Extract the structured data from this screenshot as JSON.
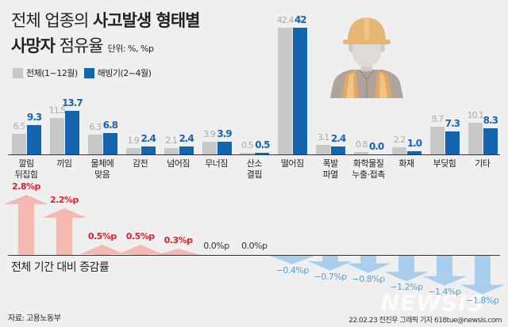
{
  "title": {
    "line1_normal": "전체 업종의 ",
    "line1_bold": "사고발생 형태별",
    "line2_bold": "사망자",
    "line2_normal": " 점유율",
    "unit": "단위: %, %p"
  },
  "legend": [
    {
      "label": "전체(1~12월)",
      "color": "#c8c8c8"
    },
    {
      "label": "해빙기(2~4월)",
      "color": "#1565ad"
    }
  ],
  "change_title": "전체 기간 대비 증감률",
  "source": "자료: 고용노동부",
  "credit": "22.02.23 전진우 그래픽 기자 618tue@newsis.com",
  "watermark": "NEWSIS",
  "colors": {
    "gray": "#c8c8c8",
    "blue": "#1565ad",
    "up_arrow": "#f5b8b0",
    "up_text": "#d8232a",
    "down_arrow": "#a9cdec",
    "down_text": "#4fa3d9"
  },
  "chart_data": {
    "type": "bar",
    "title": "전체 업종의 사고발생 형태별 사망자 점유율",
    "unit": "%, %p",
    "categories": [
      "깔림 뒤집힘",
      "끼임",
      "물체에 맞음",
      "감전",
      "넘어짐",
      "무너짐",
      "산소 결핍",
      "떨어짐",
      "폭발 파열",
      "화학물질 누출·접촉",
      "화재",
      "부딪힘",
      "기타"
    ],
    "category_lines": [
      [
        "깔림",
        "뒤집힘"
      ],
      [
        "끼임"
      ],
      [
        "물체에",
        "맞음"
      ],
      [
        "감전"
      ],
      [
        "넘어짐"
      ],
      [
        "무너짐"
      ],
      [
        "산소",
        "결핍"
      ],
      [
        "떨어짐"
      ],
      [
        "폭발",
        "파열"
      ],
      [
        "화학물질",
        "누출·접촉"
      ],
      [
        "화재"
      ],
      [
        "부딪힘"
      ],
      [
        "기타"
      ]
    ],
    "series": [
      {
        "name": "전체(1~12월)",
        "values": [
          6.5,
          11.5,
          6.3,
          1.9,
          2.1,
          3.9,
          0.5,
          42.4,
          3.1,
          0.8,
          2.2,
          8.7,
          10.1
        ]
      },
      {
        "name": "해빙기(2~4월)",
        "values": [
          9.3,
          13.7,
          6.8,
          2.4,
          2.4,
          3.9,
          0.5,
          42,
          2.4,
          0.0,
          1.0,
          7.3,
          8.3
        ]
      }
    ],
    "value_labels": {
      "gray": [
        "6.5",
        "11.5",
        "6.3",
        "1.9",
        "2.1",
        "3.9",
        "0.5",
        "42.4",
        "3.1",
        "0.8",
        "2.2",
        "8.7",
        "10.1"
      ],
      "blue": [
        "9.3",
        "13.7",
        "6.8",
        "2.4",
        "2.4",
        "3.9",
        "0.5",
        "42",
        "2.4",
        "0.0",
        "1.0",
        "7.3",
        "8.3"
      ]
    },
    "change": {
      "label": "전체 기간 대비 증감률",
      "values": [
        2.8,
        2.2,
        0.5,
        0.5,
        0.3,
        0.0,
        0.0,
        -0.4,
        -0.7,
        -0.8,
        -1.2,
        -1.4,
        -1.8
      ],
      "labels": [
        "2.8%p",
        "2.2%p",
        "0.5%p",
        "0.5%p",
        "0.3%p",
        "0.0%p",
        "0.0%p",
        "−0.4%p",
        "−0.7%p",
        "−0.8%p",
        "−1.2%p",
        "−1.4%p",
        "−1.8%p"
      ]
    },
    "legend_position": "top-left",
    "grid": false
  }
}
